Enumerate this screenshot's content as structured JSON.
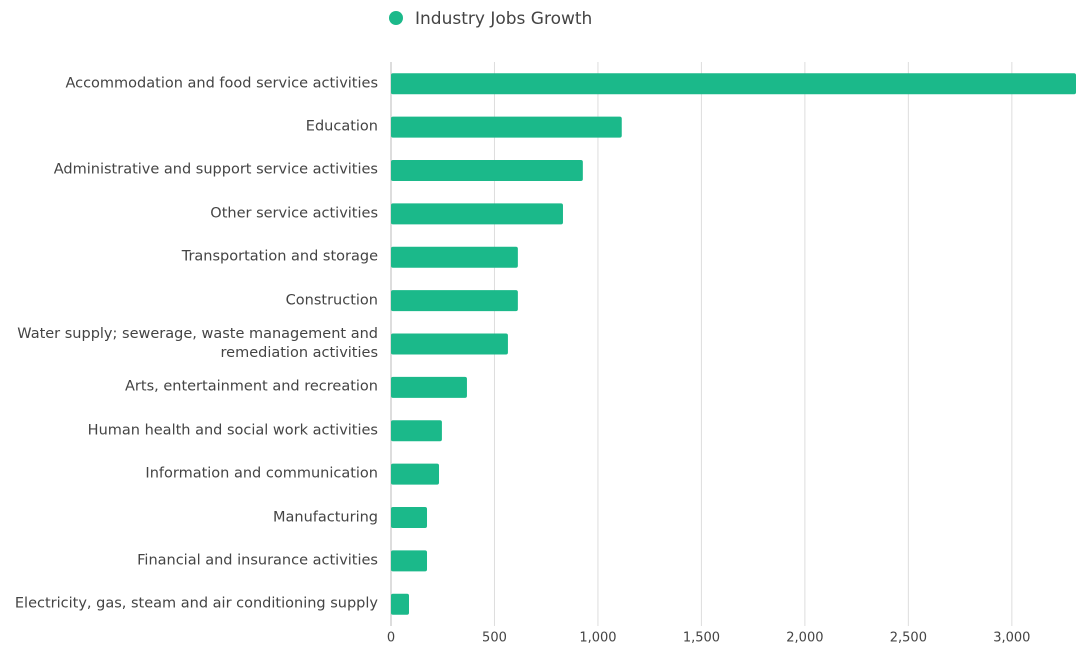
{
  "chart_data": {
    "type": "bar",
    "orientation": "horizontal",
    "legend": "top",
    "grid": true,
    "color": "#1bb98a",
    "categories": [
      "Accommodation and food service activities",
      "Education",
      "Administrative and support service activities",
      "Other service activities",
      "Transportation and storage",
      "Construction",
      "Water supply; sewerage, waste management and remediation activities",
      "Arts, entertainment and recreation",
      "Human health and social work activities",
      "Information and communication",
      "Manufacturing",
      "Financial and insurance activities",
      "Electricity, gas, steam and air conditioning supply"
    ],
    "series": [
      {
        "name": "Industry Jobs Growth",
        "color": "#1bb98a",
        "values": [
          3310,
          1115,
          927,
          831,
          613,
          613,
          565,
          367,
          246,
          232,
          174,
          174,
          87
        ]
      }
    ],
    "xlim": [
      0,
      3310
    ],
    "xticks": [
      0,
      500,
      {
        "value": 1000,
        "label": "1,000"
      },
      {
        "value": 1500,
        "label": "1,500"
      },
      {
        "value": 2000,
        "label": "2,000"
      },
      {
        "value": 2500,
        "label": "2,500"
      },
      {
        "value": 3000,
        "label": "3,000"
      }
    ]
  }
}
